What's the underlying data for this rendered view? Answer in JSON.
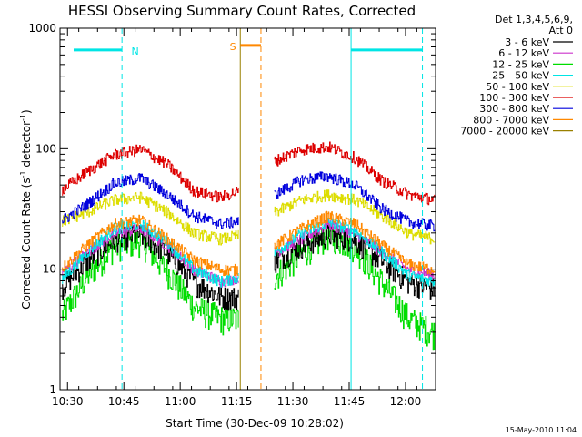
{
  "chart_data": {
    "type": "line",
    "title": "HESSI Observing Summary Count Rates, Corrected",
    "xlabel": "Start Time (30-Dec-09 10:28:02)",
    "ylabel_main": "Corrected Count Rate (s",
    "ylabel_sup1": "-1",
    "ylabel_mid": " detector",
    "ylabel_sup2": "-1",
    "ylabel_end": ")",
    "footer": "15-May-2010 11:04",
    "x_start_minutes": 0,
    "x_end_minutes": 100,
    "xlim_labels": [
      "10:28:02",
      "12:08"
    ],
    "xticks": [
      {
        "label": "10:30",
        "min": 2
      },
      {
        "label": "10:45",
        "min": 17
      },
      {
        "label": "11:00",
        "min": 32
      },
      {
        "label": "11:15",
        "min": 47
      },
      {
        "label": "11:30",
        "min": 62
      },
      {
        "label": "11:45",
        "min": 77
      },
      {
        "label": "12:00",
        "min": 92
      }
    ],
    "y_scale": "log",
    "ylim": [
      1,
      1000
    ],
    "yticks": [
      {
        "label": "1",
        "value": 1
      },
      {
        "label": "10",
        "value": 10
      },
      {
        "label": "100",
        "value": 100
      },
      {
        "label": "1000",
        "value": 1000
      }
    ],
    "legend_header": [
      "Det 1,3,4,5,6,9,",
      "Att 0"
    ],
    "series": [
      {
        "name": "3 - 6 keV",
        "color": "#000000",
        "values": [
          7,
          12,
          18,
          20,
          14,
          8,
          6,
          6,
          12,
          16,
          20,
          18,
          12,
          8,
          7
        ]
      },
      {
        "name": "6 - 12 keV",
        "color": "#cc33cc",
        "values": [
          9,
          14,
          20,
          22,
          16,
          10,
          8,
          9,
          14,
          18,
          24,
          20,
          14,
          10,
          9
        ]
      },
      {
        "name": "12 - 25 keV",
        "color": "#00dd00",
        "values": [
          4,
          9,
          16,
          18,
          10,
          5,
          4,
          4,
          9,
          14,
          20,
          16,
          8,
          4,
          3
        ]
      },
      {
        "name": "25 - 50 keV",
        "color": "#00e5e5",
        "values": [
          8,
          14,
          22,
          24,
          17,
          10,
          8,
          9,
          14,
          20,
          25,
          21,
          14,
          9,
          8
        ]
      },
      {
        "name": "50 - 100 keV",
        "color": "#dddd00",
        "values": [
          25,
          30,
          38,
          40,
          30,
          20,
          18,
          20,
          30,
          38,
          42,
          38,
          28,
          20,
          18
        ]
      },
      {
        "name": "100 - 300 keV",
        "color": "#dd0000",
        "values": [
          45,
          65,
          90,
          100,
          75,
          45,
          40,
          48,
          80,
          100,
          105,
          85,
          55,
          42,
          38
        ]
      },
      {
        "name": "300 - 800 keV",
        "color": "#0000dd",
        "values": [
          25,
          35,
          52,
          58,
          42,
          28,
          24,
          26,
          42,
          56,
          60,
          50,
          32,
          25,
          23
        ]
      },
      {
        "name": "800 - 7000 keV",
        "color": "#ff8800",
        "values": [
          10,
          16,
          24,
          26,
          18,
          12,
          10,
          10,
          16,
          22,
          28,
          24,
          16,
          11,
          10
        ]
      },
      {
        "name": "7000 - 20000 keV",
        "color": "#998000",
        "values": [
          1,
          1,
          1,
          1,
          1,
          1,
          1,
          1,
          1,
          1,
          1,
          1,
          1,
          1,
          1
        ]
      }
    ],
    "gap": {
      "start_min": 47.5,
      "end_min": 57.0
    },
    "annotations": {
      "night_label": "N",
      "saa_label": "S"
    },
    "grid": false
  }
}
